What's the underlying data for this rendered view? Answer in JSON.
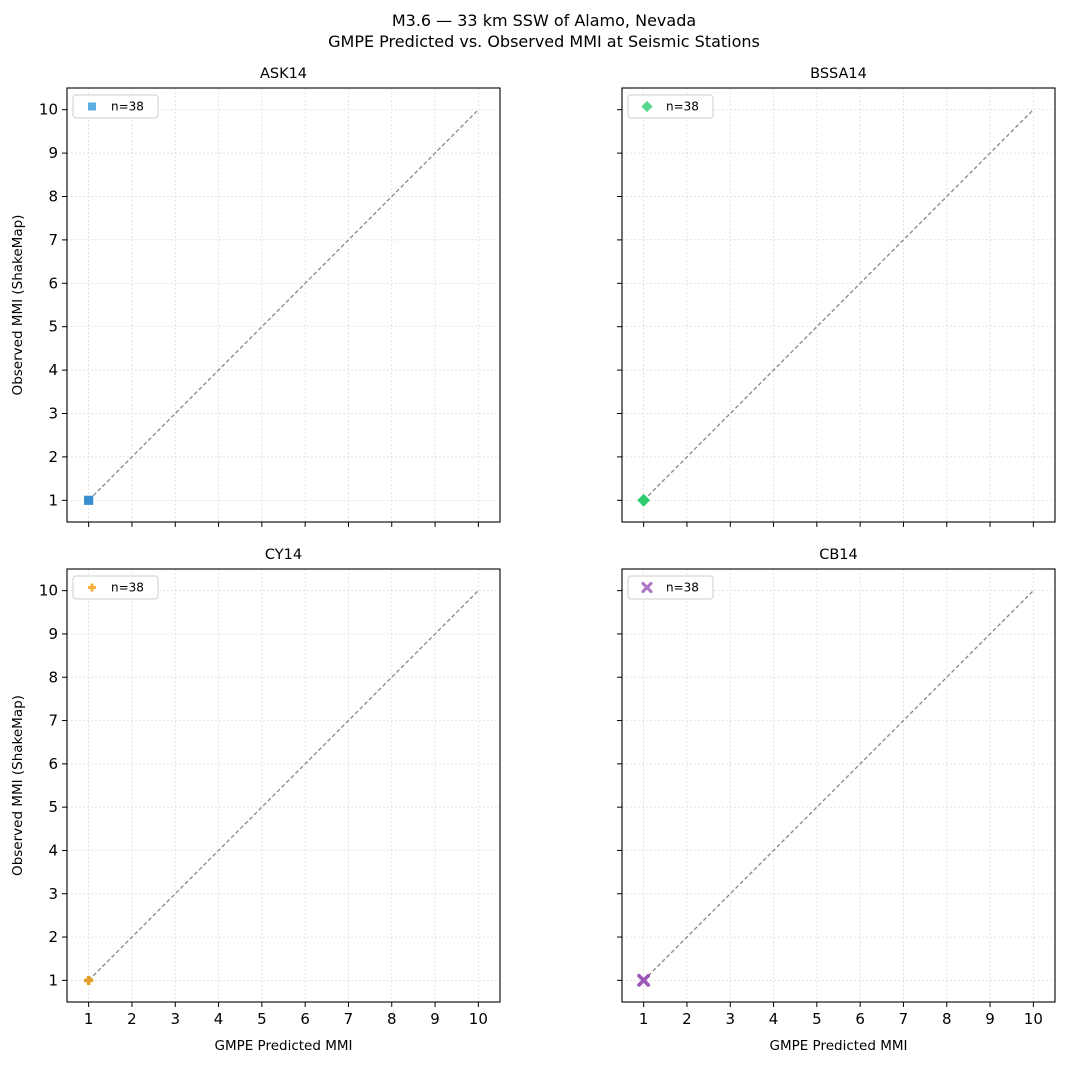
{
  "figure": {
    "title_line1": "M3.6 — 33 km SSW of Alamo, Nevada",
    "title_line2": "GMPE Predicted vs. Observed MMI at Seismic Stations"
  },
  "chart_data": [
    {
      "type": "scatter",
      "title": "ASK14",
      "xlabel": "",
      "ylabel": "Observed MMI (ShakeMap)",
      "xlim": [
        0.5,
        10.5
      ],
      "ylim": [
        0.5,
        10.5
      ],
      "xticks": [
        1,
        2,
        3,
        4,
        5,
        6,
        7,
        8,
        9,
        10
      ],
      "yticks": [
        1,
        2,
        3,
        4,
        5,
        6,
        7,
        8,
        9,
        10
      ],
      "show_xtick_labels": false,
      "show_ytick_labels": true,
      "grid": true,
      "reference_line": {
        "x": [
          1,
          10
        ],
        "y": [
          1,
          10
        ],
        "style": "dashed",
        "color": "#888888"
      },
      "series": [
        {
          "name": "n=38",
          "marker": "square",
          "color": "#3a8fd1",
          "legend_color": "#5dade2",
          "points": [
            {
              "x": 1,
              "y": 1
            }
          ],
          "count": 38
        }
      ],
      "legend_position": "top-left"
    },
    {
      "type": "scatter",
      "title": "BSSA14",
      "xlabel": "",
      "ylabel": "",
      "xlim": [
        0.5,
        10.5
      ],
      "ylim": [
        0.5,
        10.5
      ],
      "xticks": [
        1,
        2,
        3,
        4,
        5,
        6,
        7,
        8,
        9,
        10
      ],
      "yticks": [
        1,
        2,
        3,
        4,
        5,
        6,
        7,
        8,
        9,
        10
      ],
      "show_xtick_labels": false,
      "show_ytick_labels": false,
      "grid": true,
      "reference_line": {
        "x": [
          1,
          10
        ],
        "y": [
          1,
          10
        ],
        "style": "dashed",
        "color": "#888888"
      },
      "series": [
        {
          "name": "n=38",
          "marker": "diamond",
          "color": "#2ecc71",
          "legend_color": "#58d68d",
          "points": [
            {
              "x": 1,
              "y": 1
            }
          ],
          "count": 38
        }
      ],
      "legend_position": "top-left"
    },
    {
      "type": "scatter",
      "title": "CY14",
      "xlabel": "GMPE Predicted MMI",
      "ylabel": "Observed MMI (ShakeMap)",
      "xlim": [
        0.5,
        10.5
      ],
      "ylim": [
        0.5,
        10.5
      ],
      "xticks": [
        1,
        2,
        3,
        4,
        5,
        6,
        7,
        8,
        9,
        10
      ],
      "yticks": [
        1,
        2,
        3,
        4,
        5,
        6,
        7,
        8,
        9,
        10
      ],
      "show_xtick_labels": true,
      "show_ytick_labels": true,
      "grid": true,
      "reference_line": {
        "x": [
          1,
          10
        ],
        "y": [
          1,
          10
        ],
        "style": "dashed",
        "color": "#888888"
      },
      "series": [
        {
          "name": "n=38",
          "marker": "plus",
          "color": "#e59c24",
          "legend_color": "#f5b041",
          "points": [
            {
              "x": 1,
              "y": 1
            }
          ],
          "count": 38
        }
      ],
      "legend_position": "top-left"
    },
    {
      "type": "scatter",
      "title": "CB14",
      "xlabel": "GMPE Predicted MMI",
      "ylabel": "",
      "xlim": [
        0.5,
        10.5
      ],
      "ylim": [
        0.5,
        10.5
      ],
      "xticks": [
        1,
        2,
        3,
        4,
        5,
        6,
        7,
        8,
        9,
        10
      ],
      "yticks": [
        1,
        2,
        3,
        4,
        5,
        6,
        7,
        8,
        9,
        10
      ],
      "show_xtick_labels": true,
      "show_ytick_labels": false,
      "grid": true,
      "reference_line": {
        "x": [
          1,
          10
        ],
        "y": [
          1,
          10
        ],
        "style": "dashed",
        "color": "#888888"
      },
      "series": [
        {
          "name": "n=38",
          "marker": "x",
          "color": "#9b59b6",
          "legend_color": "#af7ac5",
          "points": [
            {
              "x": 1,
              "y": 1
            }
          ],
          "count": 38
        }
      ],
      "legend_position": "top-left"
    }
  ]
}
